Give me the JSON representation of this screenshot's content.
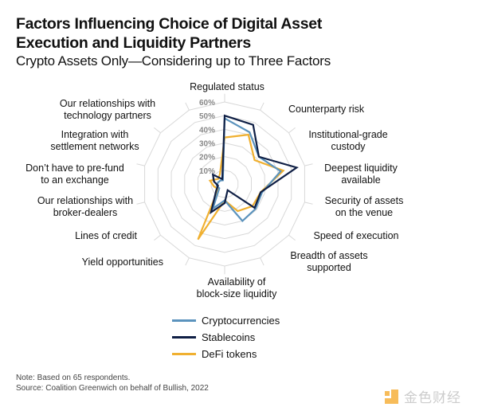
{
  "chart_data": {
    "type": "radar",
    "title": "Factors Influencing Choice of Digital Asset Execution and Liquidity Partners",
    "subtitle": "Crypto Assets Only—Considering up to Three Factors",
    "categories": [
      [
        "Regulated status"
      ],
      [
        "Counterparty risk"
      ],
      [
        "Institutional-grade",
        "custody"
      ],
      [
        "Deepest liquidity",
        "available"
      ],
      [
        "Security of assets",
        "on the venue"
      ],
      [
        "Speed of execution"
      ],
      [
        "Breadth of assets",
        "supported"
      ],
      [
        "Availability of",
        "block-size liquidity"
      ],
      [
        "Yield opportunities"
      ],
      [
        "Lines of credit"
      ],
      [
        "Our relationships with",
        "broker-dealers"
      ],
      [
        "Don’t have to pre-fund",
        "to an exchange"
      ],
      [
        "Integration with",
        "settlement networks"
      ],
      [
        "Our relationships with",
        "technology partners"
      ]
    ],
    "radial_ticks": [
      "10%",
      "20%",
      "30%",
      "40%",
      "50%",
      "60%"
    ],
    "rlim": [
      0,
      60
    ],
    "unit": "%",
    "grid": true,
    "legend_position": "bottom-center",
    "series": [
      {
        "name": "Cryptocurrencies",
        "color": "#5b93bd",
        "values": [
          48,
          42,
          32,
          42,
          28,
          29,
          30,
          12,
          20,
          5,
          6,
          5,
          4,
          3
        ]
      },
      {
        "name": "Stablecoins",
        "color": "#0f1f45",
        "values": [
          50,
          48,
          32,
          54,
          27,
          28,
          5,
          14,
          23,
          8,
          5,
          8,
          11,
          4
        ]
      },
      {
        "name": "DeFi tokens",
        "color": "#f0b030",
        "values": [
          34,
          40,
          28,
          44,
          27,
          26,
          22,
          12,
          45,
          6,
          8,
          11,
          6,
          8
        ]
      }
    ]
  },
  "header": {
    "title_line1": "Factors Influencing Choice of Digital Asset",
    "title_line2": "Execution and Liquidity Partners",
    "subtitle": "Crypto Assets Only—Considering up to Three Factors"
  },
  "legend": [
    {
      "label": "Cryptocurrencies",
      "color": "#5b93bd"
    },
    {
      "label": "Stablecoins",
      "color": "#0f1f45"
    },
    {
      "label": "DeFi tokens",
      "color": "#f0b030"
    }
  ],
  "footer": {
    "note": "Note: Based on 65 respondents.",
    "source": "Source: Coalition Greenwich on behalf of Bullish, 2022"
  },
  "watermark": {
    "text": "金色财经",
    "color": "#f5a623"
  }
}
